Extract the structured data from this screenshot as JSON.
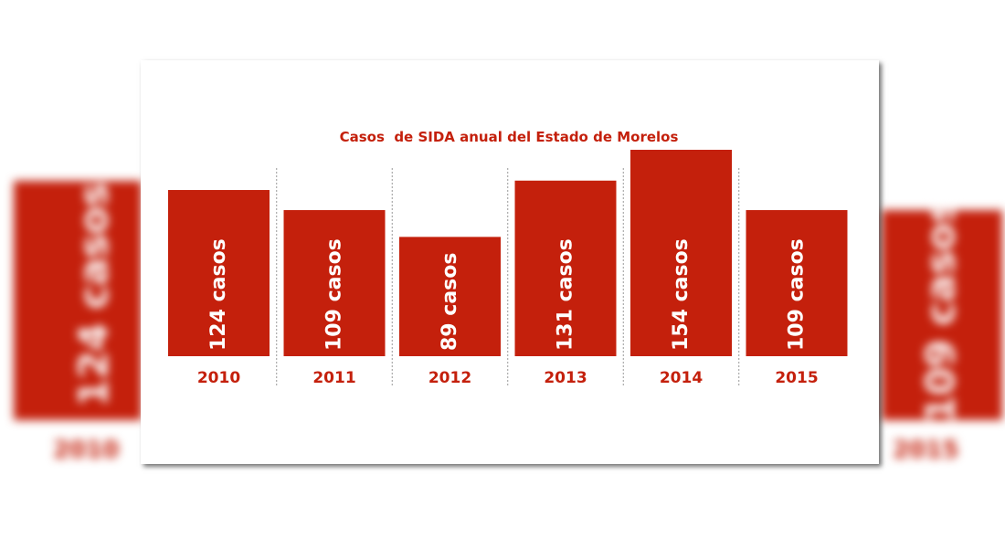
{
  "colors": {
    "bar": "#c4200c",
    "text": "#c4200c",
    "divider": "#999999",
    "background": "#ffffff"
  },
  "chart_data": {
    "type": "bar",
    "title": "Casos  de SIDA anual del Estado de Morelos",
    "categories": [
      "2010",
      "2011",
      "2012",
      "2013",
      "2014",
      "2015"
    ],
    "values": [
      124,
      109,
      89,
      131,
      154,
      109
    ],
    "data_labels": [
      "124 casos",
      "109 casos",
      "89 casos",
      "131 casos",
      "154 casos",
      "109 casos"
    ],
    "ylim": [
      0,
      154
    ],
    "grid": false,
    "legend": "none"
  },
  "background_blur": {
    "left": {
      "label": "124 casos",
      "year": "2010"
    },
    "right": {
      "label": "109 casos",
      "year": "2015"
    }
  }
}
